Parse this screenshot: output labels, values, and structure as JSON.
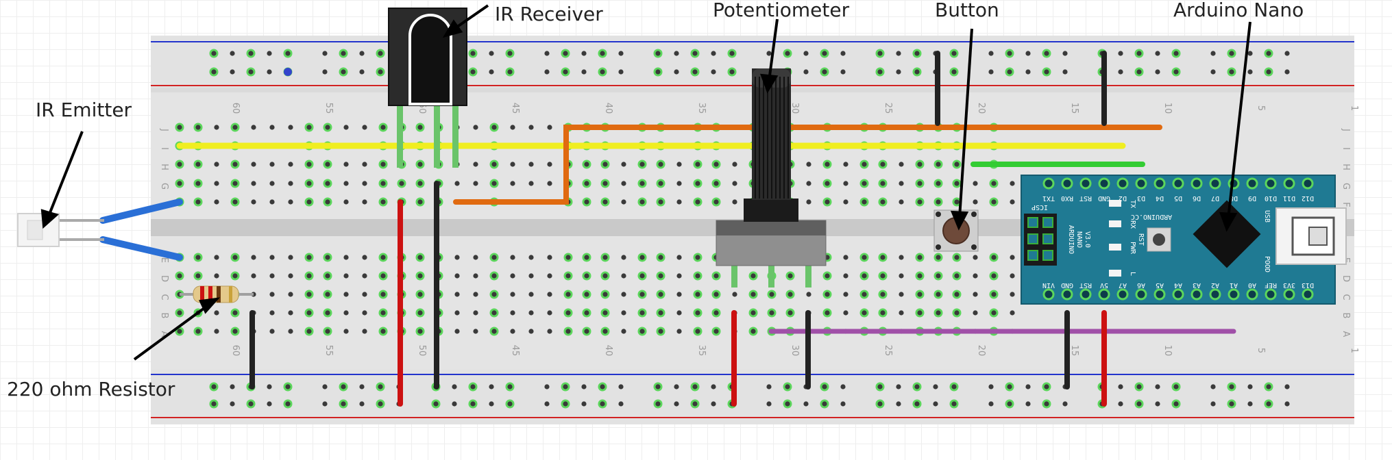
{
  "labels": {
    "ir_emitter": "IR Emitter",
    "ir_receiver": "IR Receiver",
    "potentiometer": "Potentiometer",
    "button": "Button",
    "arduino_nano": "Arduino Nano",
    "resistor": "220 ohm Resistor"
  },
  "nano": {
    "brand": "ARDUINO.CC",
    "model_line1": "ARDUINO",
    "model_line2": "NANO",
    "model_line3": "V3.0",
    "icsp": "ICSP",
    "top_pins": [
      "TX1",
      "RX0",
      "RST",
      "GND",
      "D2",
      "D3",
      "D4",
      "D5",
      "D6",
      "D7",
      "D8",
      "D9",
      "D10",
      "D11",
      "D12"
    ],
    "bottom_pins": [
      "VIN",
      "GND",
      "RST",
      "5V",
      "A7",
      "A6",
      "A5",
      "A4",
      "A3",
      "A2",
      "A1",
      "A0",
      "REF",
      "3V3",
      "D13"
    ],
    "led_tx": "TX",
    "led_rx": "RX",
    "led_pwr": "PWR",
    "led_l": "L",
    "rst": "RST",
    "usb": "USB",
    "pods": "POOD"
  },
  "breadboard": {
    "column_numbers": [
      "60",
      "55",
      "50",
      "45",
      "40",
      "35",
      "30",
      "25",
      "20",
      "15",
      "10",
      "5",
      "1"
    ],
    "row_letters_top": [
      "J",
      "I",
      "H",
      "G",
      "F"
    ],
    "row_letters_bottom": [
      "E",
      "D",
      "C",
      "B",
      "A"
    ]
  },
  "colors": {
    "board": "#dcdcdc",
    "hole": "#3a3a3a",
    "hole_highlight": "#5cd65c",
    "rail_red": "#d22222",
    "rail_blue": "#2233cc",
    "nano_blue": "#1f7a93",
    "wire_red": "#cc1111",
    "wire_black": "#222222",
    "wire_orange": "#e06a10",
    "wire_yellow": "#f0ee20",
    "wire_green": "#33cc33",
    "wire_purple": "#a050a8",
    "wire_blue": "#2a6fd6"
  }
}
